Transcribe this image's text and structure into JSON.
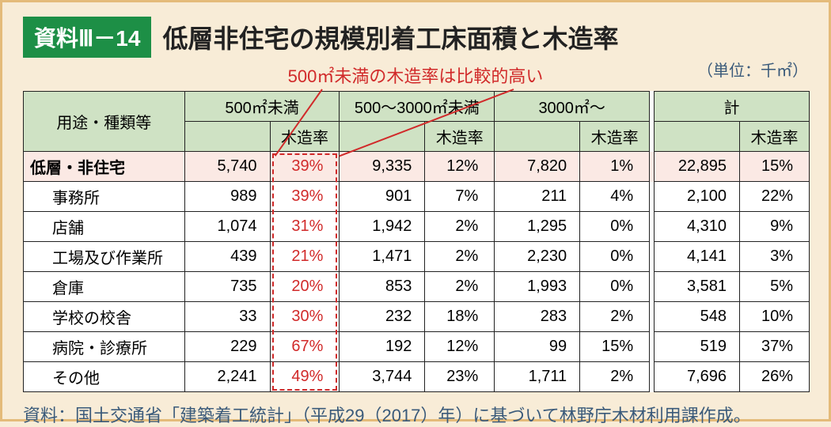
{
  "badge": "資料Ⅲ－14",
  "title": "低層非住宅の規模別着工床面積と木造率",
  "annotation": "500㎡未満の木造率は比較的高い",
  "unit": "（単位：千㎡）",
  "headers": {
    "use": "用途・種類等",
    "c1": "500㎡未満",
    "c2": "500～3000㎡未満",
    "c3": "3000㎡～",
    "c4": "計",
    "wood": "木造率"
  },
  "rows": [
    {
      "label": "低層・非住宅",
      "top": true,
      "v": [
        "5,740",
        "39%",
        "9,335",
        "12%",
        "7,820",
        "1%",
        "22,895",
        "15%"
      ]
    },
    {
      "label": "事務所",
      "v": [
        "989",
        "39%",
        "901",
        "7%",
        "211",
        "4%",
        "2,100",
        "22%"
      ]
    },
    {
      "label": "店舗",
      "v": [
        "1,074",
        "31%",
        "1,942",
        "2%",
        "1,295",
        "0%",
        "4,310",
        "9%"
      ]
    },
    {
      "label": "工場及び作業所",
      "v": [
        "439",
        "21%",
        "1,471",
        "2%",
        "2,230",
        "0%",
        "4,141",
        "3%"
      ]
    },
    {
      "label": "倉庫",
      "v": [
        "735",
        "20%",
        "853",
        "2%",
        "1,993",
        "0%",
        "3,581",
        "5%"
      ]
    },
    {
      "label": "学校の校舎",
      "v": [
        "33",
        "30%",
        "232",
        "18%",
        "283",
        "2%",
        "548",
        "10%"
      ]
    },
    {
      "label": "病院・診療所",
      "v": [
        "229",
        "67%",
        "192",
        "12%",
        "99",
        "15%",
        "519",
        "37%"
      ]
    },
    {
      "label": "その他",
      "v": [
        "2,241",
        "49%",
        "3,744",
        "23%",
        "1,711",
        "2%",
        "7,696",
        "26%"
      ]
    }
  ],
  "source": "資料：国土交通省「建築着工統計」（平成29（2017）年）に基づいて林野庁木材利用課作成。",
  "colors": {
    "accent_green": "#1d8f46",
    "header_green": "#cfe2c4",
    "bg": "#f8ecd7",
    "border": "#e4bb7a",
    "highlight_red": "#d12a2a",
    "row_pink": "#fbe9e4",
    "source_blue": "#3a5a7a"
  }
}
